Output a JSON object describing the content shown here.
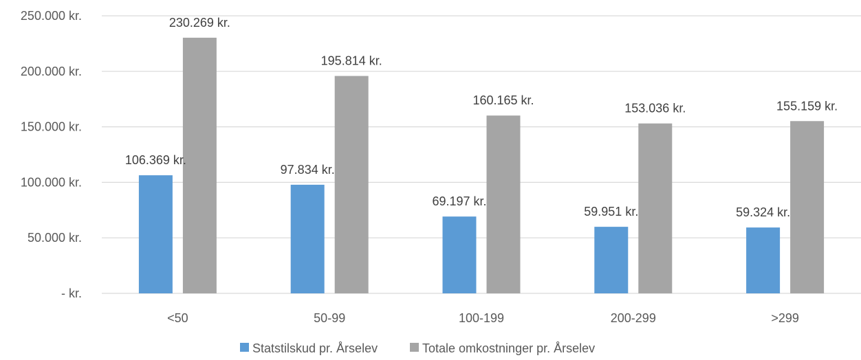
{
  "chart_data": {
    "type": "bar",
    "categories": [
      "<50",
      "50-99",
      "100-199",
      "200-299",
      ">299"
    ],
    "series": [
      {
        "name": "Statstilskud pr. Årselev",
        "color": "#5B9BD5",
        "values": [
          106369,
          97834,
          69197,
          59951,
          59324
        ],
        "labels": [
          "106.369 kr.",
          "97.834 kr.",
          "69.197 kr.",
          "59.951 kr.",
          "59.324 kr."
        ]
      },
      {
        "name": "Totale omkostninger pr. Årselev",
        "color": "#A5A5A5",
        "values": [
          230269,
          195814,
          160165,
          153036,
          155159
        ],
        "labels": [
          "230.269 kr.",
          "195.814 kr.",
          "160.165 kr.",
          "153.036 kr.",
          "155.159 kr."
        ]
      }
    ],
    "ylim": [
      0,
      250000
    ],
    "yticks": [
      0,
      50000,
      100000,
      150000,
      200000,
      250000
    ],
    "ytick_labels": [
      "-   kr.",
      "50.000 kr.",
      "100.000 kr.",
      "150.000 kr.",
      "200.000 kr.",
      "250.000 kr."
    ],
    "grid": true,
    "legend_position": "bottom"
  }
}
